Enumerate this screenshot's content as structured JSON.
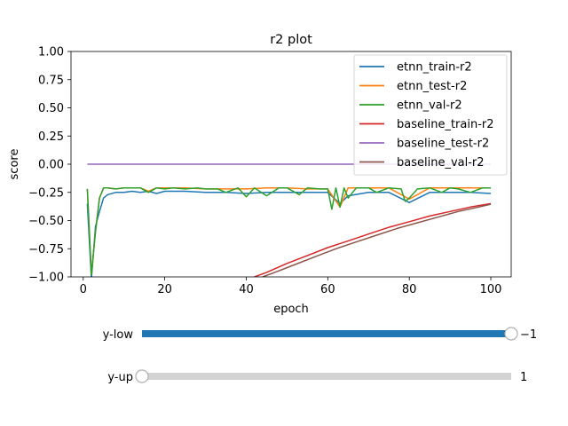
{
  "chart_data": {
    "type": "line",
    "title": "r2 plot",
    "xlabel": "epoch",
    "ylabel": "score",
    "xlim": [
      -3,
      105
    ],
    "ylim": [
      -1.0,
      1.0
    ],
    "x_ticks": [
      0,
      20,
      40,
      60,
      80,
      100
    ],
    "y_ticks": [
      -1.0,
      -0.75,
      -0.5,
      -0.25,
      0.0,
      0.25,
      0.5,
      0.75,
      1.0
    ],
    "y_tick_labels": [
      "−1.00",
      "−0.75",
      "−0.50",
      "−0.25",
      "0.00",
      "0.25",
      "0.50",
      "0.75",
      "1.00"
    ],
    "legend_position": "top-right",
    "grid": false,
    "series": [
      {
        "name": "etnn_train-r2",
        "color": "#1f77b4",
        "x": [
          1,
          2,
          3,
          4,
          5,
          6,
          8,
          10,
          12,
          14,
          16,
          18,
          20,
          25,
          30,
          35,
          40,
          45,
          50,
          55,
          60,
          63,
          65,
          70,
          75,
          80,
          85,
          90,
          95,
          100
        ],
        "y": [
          -0.35,
          -1.02,
          -0.55,
          -0.42,
          -0.3,
          -0.27,
          -0.25,
          -0.25,
          -0.24,
          -0.25,
          -0.24,
          -0.26,
          -0.24,
          -0.24,
          -0.25,
          -0.25,
          -0.26,
          -0.25,
          -0.25,
          -0.25,
          -0.25,
          -0.35,
          -0.28,
          -0.25,
          -0.25,
          -0.34,
          -0.25,
          -0.25,
          -0.25,
          -0.26
        ]
      },
      {
        "name": "etnn_test-r2",
        "color": "#ff7f0e",
        "x": [
          1,
          2,
          3,
          4,
          5,
          6,
          8,
          10,
          12,
          14,
          16,
          18,
          20,
          25,
          30,
          35,
          40,
          45,
          50,
          55,
          60,
          63,
          65,
          70,
          75,
          80,
          85,
          90,
          95,
          100
        ],
        "y": [
          -0.22,
          -0.98,
          -0.6,
          -0.3,
          -0.21,
          -0.21,
          -0.22,
          -0.21,
          -0.21,
          -0.21,
          -0.24,
          -0.21,
          -0.21,
          -0.21,
          -0.22,
          -0.22,
          -0.22,
          -0.21,
          -0.21,
          -0.22,
          -0.22,
          -0.38,
          -0.21,
          -0.21,
          -0.21,
          -0.31,
          -0.21,
          -0.21,
          -0.21,
          -0.21
        ]
      },
      {
        "name": "etnn_val-r2",
        "color": "#2ca02c",
        "x": [
          1,
          2,
          3,
          4,
          5,
          6,
          8,
          10,
          12,
          14,
          16,
          18,
          20,
          22,
          25,
          28,
          30,
          33,
          35,
          38,
          40,
          42,
          45,
          48,
          50,
          53,
          55,
          58,
          60,
          61,
          62,
          63,
          64,
          65,
          67,
          70,
          72,
          75,
          78,
          79,
          80,
          82,
          85,
          88,
          90,
          92,
          95,
          98,
          100
        ],
        "y": [
          -0.22,
          -0.98,
          -0.6,
          -0.3,
          -0.21,
          -0.21,
          -0.22,
          -0.21,
          -0.21,
          -0.21,
          -0.25,
          -0.21,
          -0.22,
          -0.21,
          -0.22,
          -0.21,
          -0.22,
          -0.22,
          -0.25,
          -0.21,
          -0.29,
          -0.21,
          -0.28,
          -0.21,
          -0.21,
          -0.27,
          -0.21,
          -0.22,
          -0.22,
          -0.4,
          -0.21,
          -0.38,
          -0.21,
          -0.3,
          -0.21,
          -0.21,
          -0.25,
          -0.21,
          -0.22,
          -0.33,
          -0.3,
          -0.22,
          -0.21,
          -0.25,
          -0.21,
          -0.22,
          -0.25,
          -0.21,
          -0.21
        ]
      },
      {
        "name": "baseline_train-r2",
        "color": "#d62728",
        "x": [
          42,
          45,
          50,
          55,
          60,
          65,
          70,
          75,
          80,
          85,
          90,
          95,
          100
        ],
        "y": [
          -1.0,
          -0.96,
          -0.88,
          -0.81,
          -0.74,
          -0.68,
          -0.62,
          -0.56,
          -0.51,
          -0.46,
          -0.42,
          -0.38,
          -0.35
        ]
      },
      {
        "name": "baseline_test-r2",
        "color": "#9467bd",
        "x": [
          1,
          100
        ],
        "y": [
          0.0,
          0.0
        ]
      },
      {
        "name": "baseline_val-r2",
        "color": "#8c564b",
        "x": [
          44,
          47,
          52,
          57,
          62,
          67,
          72,
          77,
          82,
          87,
          92,
          97,
          100
        ],
        "y": [
          -1.0,
          -0.96,
          -0.89,
          -0.82,
          -0.75,
          -0.69,
          -0.63,
          -0.57,
          -0.52,
          -0.47,
          -0.42,
          -0.38,
          -0.355
        ]
      }
    ]
  },
  "sliders": [
    {
      "label": "y-low",
      "value": -1,
      "value_text": "−1",
      "min": -1,
      "max": 1,
      "fill": 1.0,
      "color": "#1f77b4"
    },
    {
      "label": "y-up",
      "value": 1,
      "value_text": "1",
      "min": -1,
      "max": 1,
      "fill": 0.0,
      "color": "#1f77b4"
    }
  ]
}
